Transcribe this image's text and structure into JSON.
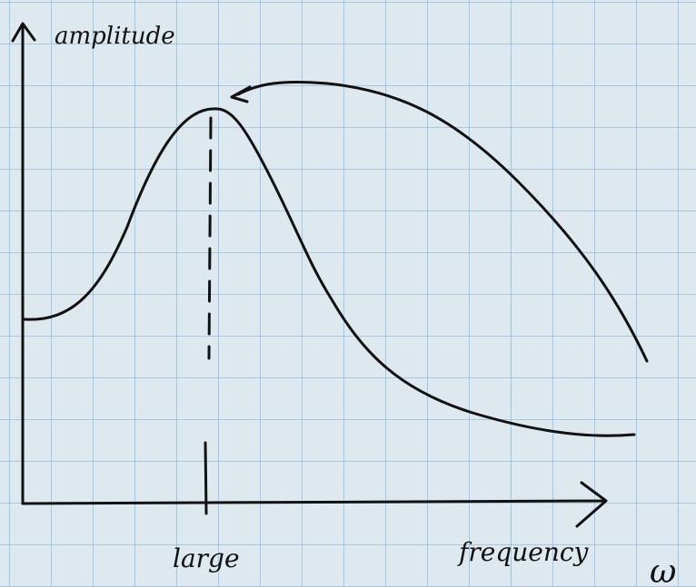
{
  "y_axis_label": "amplitude",
  "x_axis_label": "frequency",
  "peak_label": "large",
  "omega_label": "ω"
}
